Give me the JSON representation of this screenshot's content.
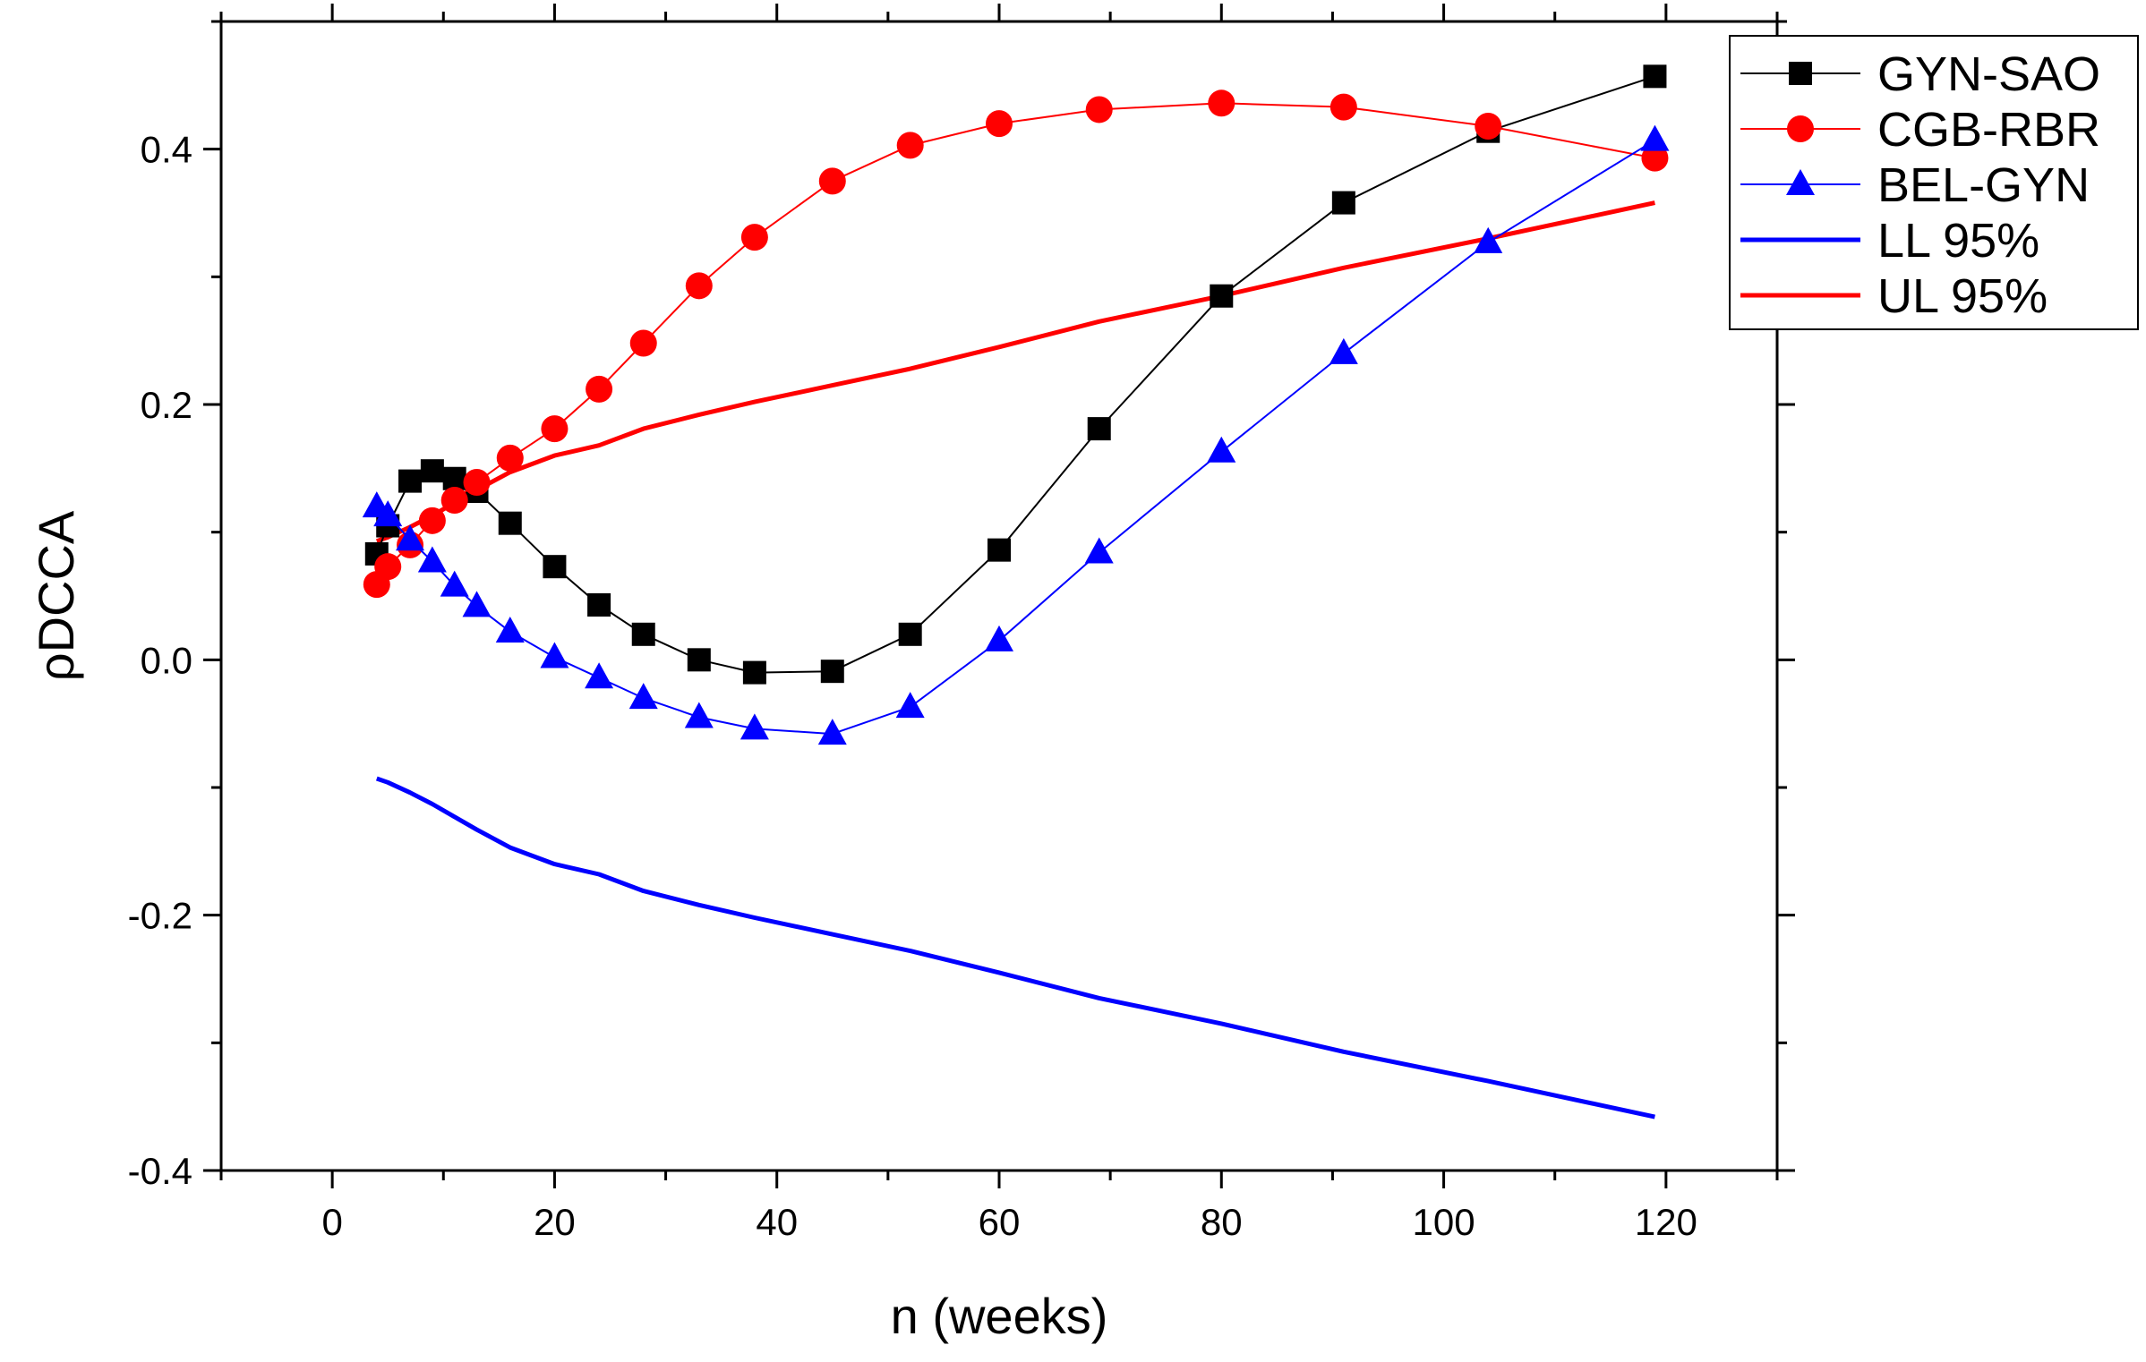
{
  "chart_data": {
    "type": "line",
    "title": "",
    "xlabel": "n (weeks)",
    "ylabel": "ρDCCA",
    "xlim": [
      -10,
      130
    ],
    "ylim": [
      -0.4,
      0.5
    ],
    "x_ticks": [
      0,
      20,
      40,
      60,
      80,
      100,
      120
    ],
    "x_tick_labels": [
      "0",
      "20",
      "40",
      "60",
      "80",
      "100",
      "120"
    ],
    "y_ticks": [
      -0.4,
      -0.2,
      0.0,
      0.2,
      0.4
    ],
    "y_tick_labels": [
      "-0.4",
      "-0.2",
      "0.0",
      "0.2",
      "0.4"
    ],
    "grid": false,
    "legend_position": "top-right",
    "series": [
      {
        "name": "GYN-SAO",
        "color": "#000000",
        "marker": "square",
        "line_width": "thin",
        "x": [
          4,
          5,
          7,
          9,
          11,
          13,
          16,
          20,
          24,
          28,
          33,
          38,
          45,
          52,
          60,
          69,
          80,
          91,
          104,
          119
        ],
        "values": [
          0.083,
          0.105,
          0.14,
          0.148,
          0.142,
          0.132,
          0.107,
          0.073,
          0.043,
          0.02,
          0.0,
          -0.01,
          -0.009,
          0.02,
          0.086,
          0.181,
          0.285,
          0.358,
          0.414,
          0.457
        ]
      },
      {
        "name": "CGB-RBR",
        "color": "#ff0000",
        "marker": "circle",
        "line_width": "thin",
        "x": [
          4,
          5,
          7,
          9,
          11,
          13,
          16,
          20,
          24,
          28,
          33,
          38,
          45,
          52,
          60,
          69,
          80,
          91,
          104,
          119
        ],
        "values": [
          0.059,
          0.073,
          0.09,
          0.109,
          0.125,
          0.139,
          0.158,
          0.181,
          0.212,
          0.248,
          0.293,
          0.331,
          0.375,
          0.403,
          0.42,
          0.431,
          0.436,
          0.433,
          0.418,
          0.393
        ]
      },
      {
        "name": "BEL-GYN",
        "color": "#0000ff",
        "marker": "triangle",
        "line_width": "thin",
        "x": [
          4,
          5,
          7,
          9,
          11,
          13,
          16,
          20,
          24,
          28,
          33,
          38,
          45,
          52,
          60,
          69,
          80,
          91,
          104,
          119
        ],
        "values": [
          0.12,
          0.113,
          0.094,
          0.077,
          0.058,
          0.042,
          0.022,
          0.002,
          -0.014,
          -0.03,
          -0.045,
          -0.054,
          -0.058,
          -0.037,
          0.015,
          0.084,
          0.163,
          0.24,
          0.327,
          0.407
        ]
      },
      {
        "name": "LL 95%",
        "color": "#0000ff",
        "marker": "none",
        "line_width": "thick",
        "x": [
          4,
          5,
          7,
          9,
          11,
          13,
          16,
          20,
          24,
          28,
          33,
          38,
          45,
          52,
          60,
          69,
          80,
          91,
          104,
          119
        ],
        "values": [
          -0.093,
          -0.096,
          -0.104,
          -0.113,
          -0.123,
          -0.133,
          -0.147,
          -0.16,
          -0.168,
          -0.181,
          -0.192,
          -0.202,
          -0.215,
          -0.228,
          -0.245,
          -0.265,
          -0.285,
          -0.307,
          -0.33,
          -0.358
        ]
      },
      {
        "name": "UL 95%",
        "color": "#ff0000",
        "marker": "none",
        "line_width": "thick",
        "x": [
          4,
          5,
          7,
          9,
          11,
          13,
          16,
          20,
          24,
          28,
          33,
          38,
          45,
          52,
          60,
          69,
          80,
          91,
          104,
          119
        ],
        "values": [
          0.093,
          0.096,
          0.104,
          0.113,
          0.123,
          0.133,
          0.147,
          0.16,
          0.168,
          0.181,
          0.192,
          0.202,
          0.215,
          0.228,
          0.245,
          0.265,
          0.285,
          0.307,
          0.33,
          0.358
        ]
      }
    ]
  }
}
